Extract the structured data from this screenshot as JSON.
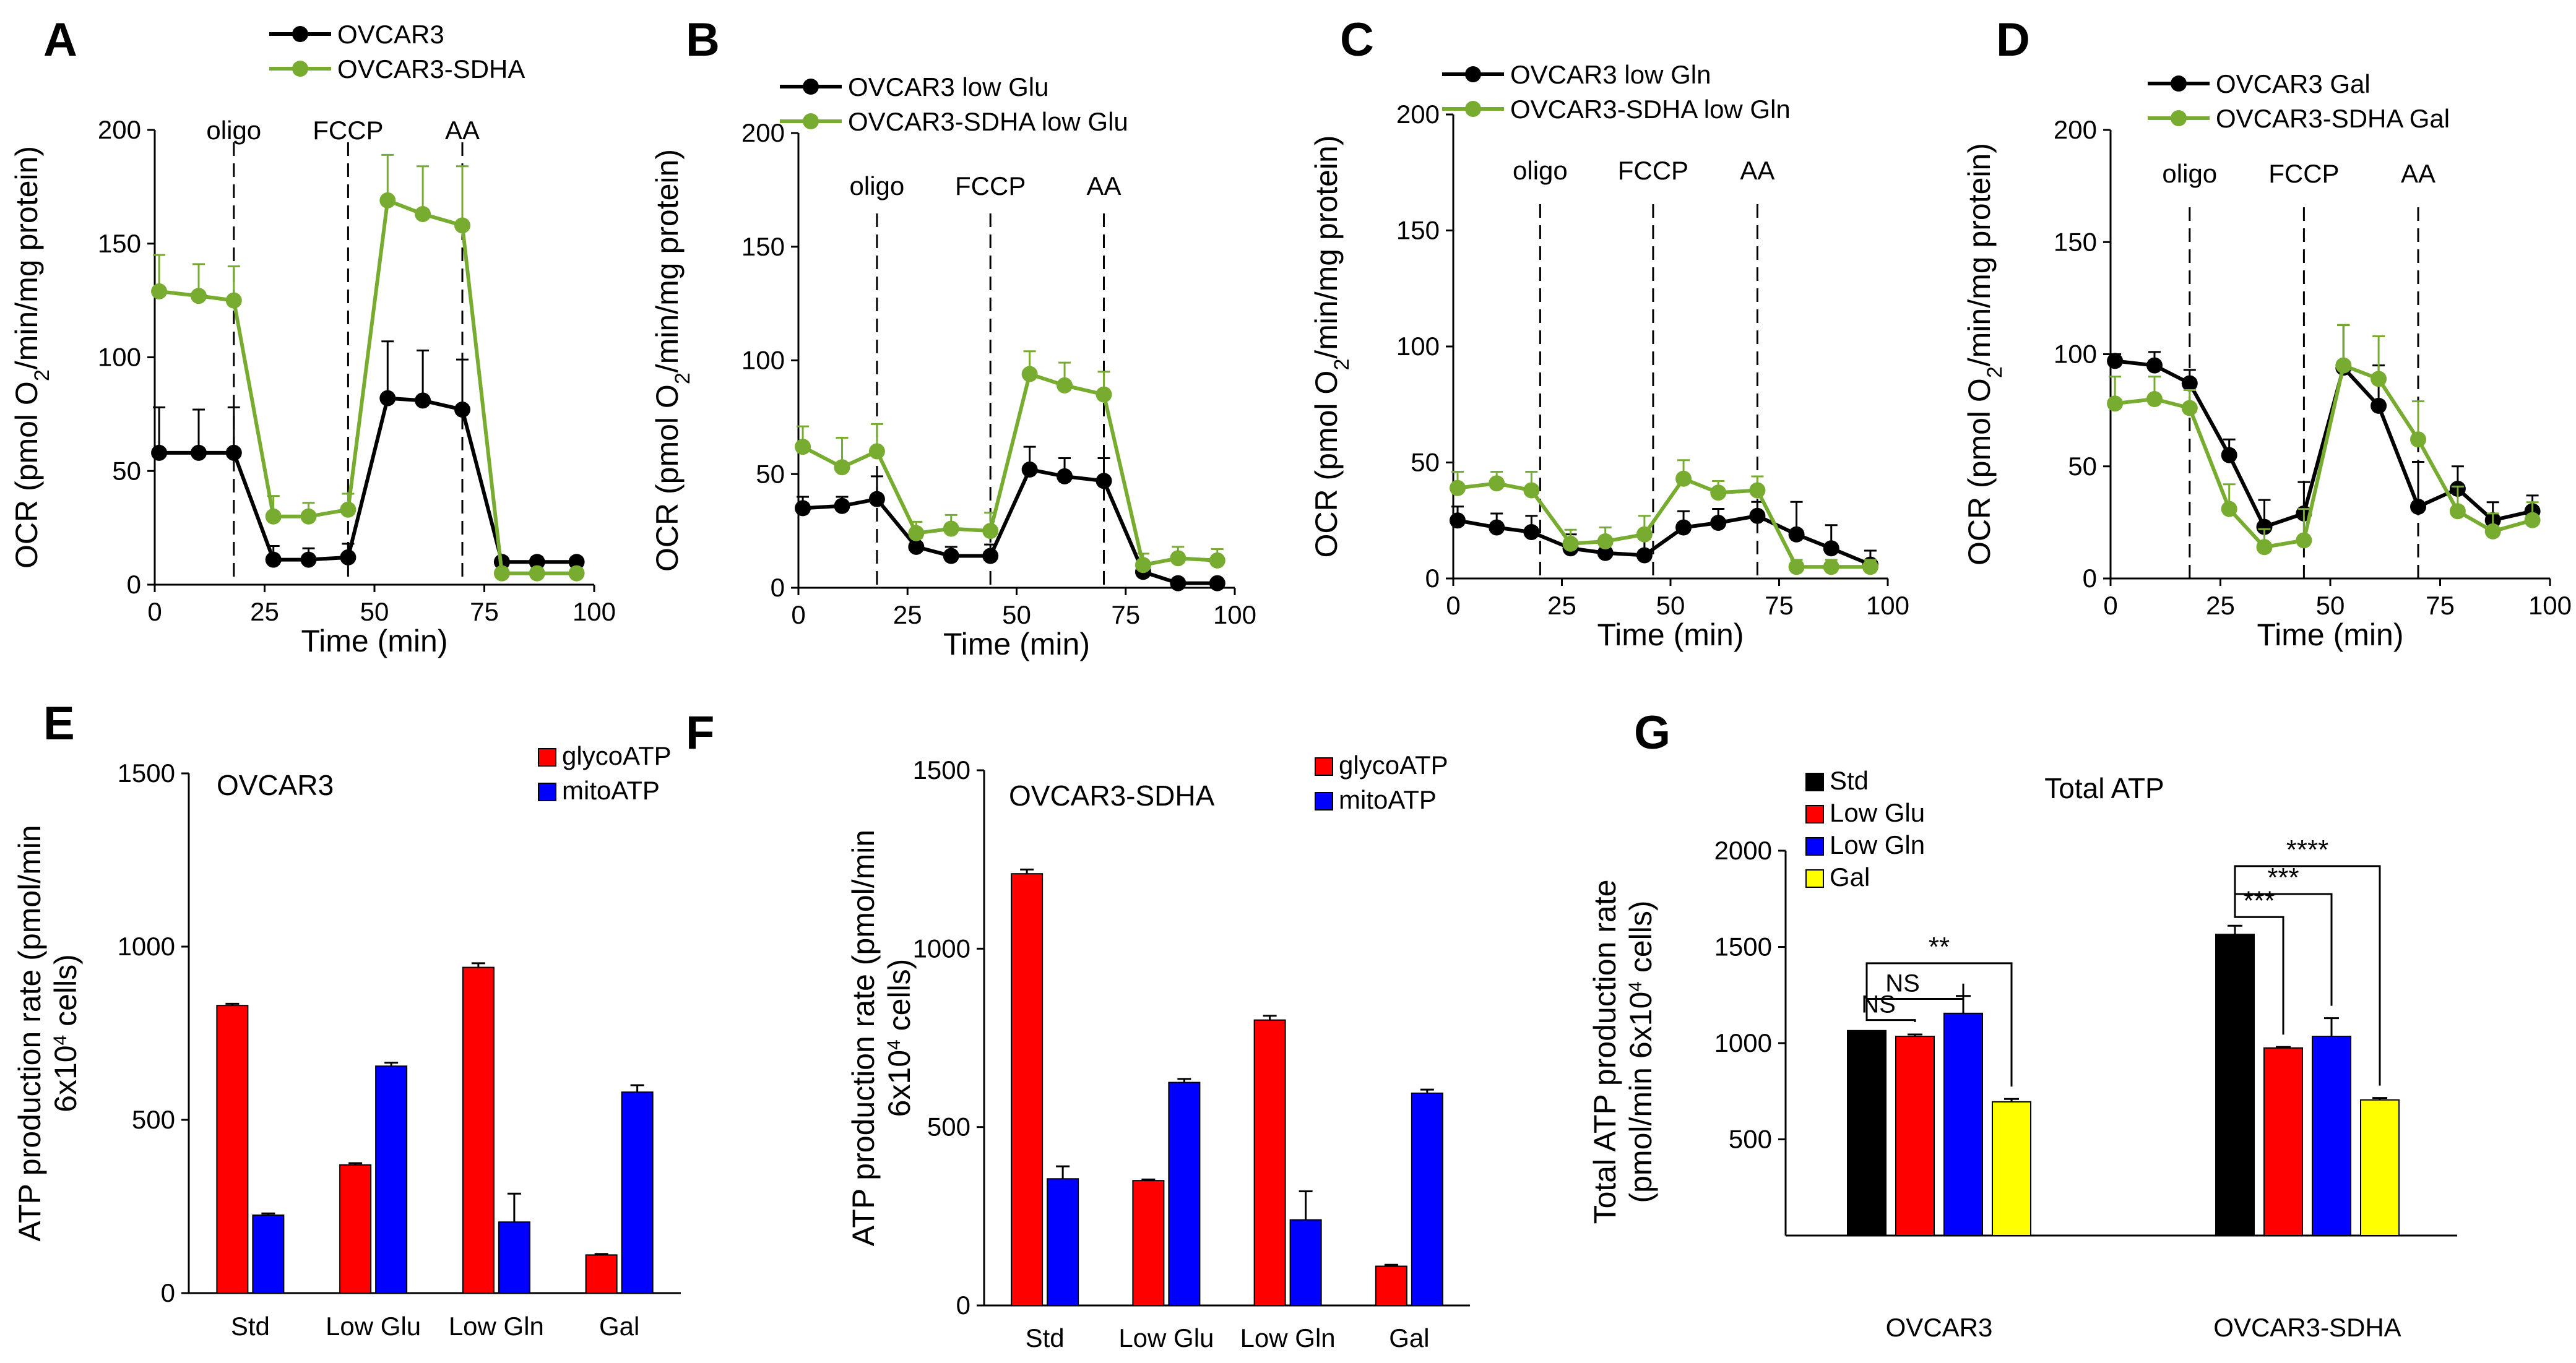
{
  "chart_data": [
    {
      "type": "line",
      "panel": "A",
      "xlabel": "Time (min)",
      "ylabel": "OCR (pmol O2/min/mg protein)",
      "ylabel_parts": [
        "OCR (pmol O",
        "2",
        "/min/mg protein)"
      ],
      "xlim": [
        0,
        100
      ],
      "ylim": [
        0,
        200
      ],
      "xticks": [
        0,
        25,
        50,
        75,
        100
      ],
      "yticks": [
        0,
        50,
        100,
        150,
        200
      ],
      "injections": [
        {
          "x": 18,
          "label": "oligo"
        },
        {
          "x": 44,
          "label": "FCCP"
        },
        {
          "x": 70,
          "label": "AA"
        }
      ],
      "x": [
        1,
        10,
        18,
        27,
        35,
        44,
        53,
        61,
        70,
        79,
        87,
        96
      ],
      "series": [
        {
          "name": "OVCAR3",
          "color": "#000000",
          "values": [
            58,
            58,
            58,
            11,
            11,
            12,
            82,
            81,
            77,
            10,
            10,
            10
          ],
          "errors": [
            20,
            19,
            20,
            6,
            5,
            6,
            25,
            22,
            22,
            2,
            2,
            2
          ]
        },
        {
          "name": "OVCAR3-SDHA",
          "color": "#77AC30",
          "values": [
            129,
            127,
            125,
            30,
            30,
            33,
            169,
            163,
            158,
            5,
            5,
            5
          ],
          "errors": [
            16,
            14,
            15,
            9,
            6,
            7,
            20,
            21,
            26,
            2,
            2,
            2
          ]
        }
      ]
    },
    {
      "type": "line",
      "panel": "B",
      "xlabel": "Time (min)",
      "ylabel": "OCR (pmol O2/min/mg protein)",
      "ylabel_parts": [
        "OCR (pmol O",
        "2",
        "/min/mg protein)"
      ],
      "xlim": [
        0,
        100
      ],
      "ylim": [
        0,
        200
      ],
      "xticks": [
        0,
        25,
        50,
        75,
        100
      ],
      "yticks": [
        0,
        50,
        100,
        150,
        200
      ],
      "injections": [
        {
          "x": 18,
          "label": "oligo"
        },
        {
          "x": 44,
          "label": "FCCP"
        },
        {
          "x": 70,
          "label": "AA"
        }
      ],
      "x": [
        1,
        10,
        18,
        27,
        35,
        44,
        53,
        61,
        70,
        79,
        87,
        96
      ],
      "series": [
        {
          "name": "OVCAR3  low Glu",
          "color": "#000000",
          "values": [
            35,
            36,
            39,
            18,
            14,
            14,
            52,
            49,
            47,
            7,
            2,
            2
          ],
          "errors": [
            5,
            4,
            10,
            4,
            4,
            5,
            10,
            8,
            10,
            4,
            2,
            1
          ]
        },
        {
          "name": "OVCAR3-SDHA low Glu",
          "color": "#77AC30",
          "values": [
            62,
            53,
            60,
            24,
            26,
            25,
            94,
            89,
            85,
            10,
            13,
            12
          ],
          "errors": [
            9,
            13,
            12,
            5,
            6,
            8,
            10,
            10,
            10,
            5,
            5,
            5
          ]
        }
      ]
    },
    {
      "type": "line",
      "panel": "C",
      "xlabel": "Time (min)",
      "ylabel": "OCR (pmol O2/min/mg protein)",
      "ylabel_parts": [
        "OCR (pmol O",
        "2",
        "/min/mg protein)"
      ],
      "xlim": [
        0,
        100
      ],
      "ylim": [
        0,
        200
      ],
      "xticks": [
        0,
        25,
        50,
        75,
        100
      ],
      "yticks": [
        0,
        50,
        100,
        150,
        200
      ],
      "injections": [
        {
          "x": 20,
          "label": "oligo"
        },
        {
          "x": 46,
          "label": "FCCP"
        },
        {
          "x": 70,
          "label": "AA"
        }
      ],
      "x": [
        1,
        10,
        18,
        27,
        35,
        44,
        53,
        61,
        70,
        79,
        87,
        96
      ],
      "series": [
        {
          "name": "OVCAR3  low Gln",
          "color": "#000000",
          "values": [
            25,
            22,
            20,
            13,
            11,
            10,
            22,
            24,
            27,
            19,
            13,
            6
          ],
          "errors": [
            6,
            6,
            7,
            6,
            5,
            7,
            7,
            6,
            6,
            14,
            10,
            6
          ]
        },
        {
          "name": "OVCAR3-SDHA low Gln",
          "color": "#77AC30",
          "values": [
            39,
            41,
            38,
            15,
            16,
            19,
            43,
            37,
            38,
            5,
            5,
            5
          ],
          "errors": [
            7,
            5,
            8,
            6,
            6,
            8,
            8,
            5,
            6,
            3,
            3,
            3
          ]
        }
      ]
    },
    {
      "type": "line",
      "panel": "D",
      "xlabel": "Time (min)",
      "ylabel": "OCR (pmol O2/min/mg protein)",
      "ylabel_parts": [
        "OCR (pmol O",
        "2",
        "/min/mg protein)"
      ],
      "xlim": [
        0,
        100
      ],
      "ylim": [
        0,
        200
      ],
      "xticks": [
        0,
        25,
        50,
        75,
        100
      ],
      "yticks": [
        0,
        50,
        100,
        150,
        200
      ],
      "injections": [
        {
          "x": 18,
          "label": "oligo"
        },
        {
          "x": 44,
          "label": "FCCP"
        },
        {
          "x": 70,
          "label": "AA"
        }
      ],
      "x": [
        1,
        10,
        18,
        27,
        35,
        44,
        53,
        61,
        70,
        79,
        87,
        96
      ],
      "series": [
        {
          "name": "OVCAR3  Gal",
          "color": "#000000",
          "values": [
            97,
            95,
            87,
            55,
            23,
            29,
            94,
            77,
            32,
            40,
            26,
            30
          ],
          "errors": [
            3,
            6,
            6,
            7,
            12,
            14,
            19,
            18,
            20,
            10,
            8,
            7
          ]
        },
        {
          "name": "OVCAR3-SDHA Gal",
          "color": "#77AC30",
          "values": [
            78,
            80,
            76,
            31,
            14,
            17,
            95,
            89,
            62,
            30,
            21,
            26
          ],
          "errors": [
            12,
            10,
            8,
            11,
            8,
            14,
            18,
            19,
            17,
            11,
            8,
            8
          ]
        }
      ]
    },
    {
      "type": "bar",
      "panel": "E",
      "title": "OVCAR3",
      "ylabel_line1": "ATP production rate (pmol/min",
      "ylabel_line2_parts": [
        "6x10",
        "4",
        " cells)"
      ],
      "ylim": [
        0,
        1500
      ],
      "yticks": [
        0,
        500,
        1000,
        1500
      ],
      "categories": [
        "Std",
        "Low Glu",
        "Low Gln",
        "Gal"
      ],
      "series": [
        {
          "name": "glycoATP",
          "color": "#FF0000",
          "values": [
            830,
            370,
            940,
            110
          ],
          "errors": [
            5,
            5,
            12,
            3
          ]
        },
        {
          "name": "mitoATP",
          "color": "#0000FF",
          "values": [
            225,
            655,
            205,
            580
          ],
          "errors": [
            5,
            10,
            82,
            20
          ]
        }
      ]
    },
    {
      "type": "bar",
      "panel": "F",
      "title": "OVCAR3-SDHA",
      "ylabel_line1": "ATP production rate (pmol/min",
      "ylabel_line2_parts": [
        "6x10",
        "4",
        " cells)"
      ],
      "ylim": [
        0,
        1500
      ],
      "yticks": [
        0,
        500,
        1000,
        1500
      ],
      "categories": [
        "Std",
        "Low Glu",
        "Low Gln",
        "Gal"
      ],
      "series": [
        {
          "name": "glycoATP",
          "color": "#FF0000",
          "values": [
            1210,
            350,
            800,
            110
          ],
          "errors": [
            12,
            3,
            12,
            4
          ]
        },
        {
          "name": "mitoATP",
          "color": "#0000FF",
          "values": [
            355,
            625,
            240,
            595
          ],
          "errors": [
            35,
            10,
            80,
            10
          ]
        }
      ]
    },
    {
      "type": "bar",
      "panel": "G",
      "title": "Total ATP",
      "ylabel_line1": "Total ATP production rate",
      "ylabel_line2_parts": [
        "(pmol/min 6x10",
        "4",
        " cells)"
      ],
      "ylim": [
        0,
        2000
      ],
      "ymin_display": 500,
      "yticks": [
        500,
        1000,
        1500,
        2000
      ],
      "categories": [
        "OVCAR3",
        "OVCAR3-SDHA"
      ],
      "series": [
        {
          "name": "Std",
          "color": "#000000",
          "values": [
            1065,
            1565
          ],
          "errors": [
            0,
            45
          ]
        },
        {
          "name": "Low Glu",
          "color": "#FF0000",
          "values": [
            1035,
            975
          ],
          "errors": [
            10,
            5
          ]
        },
        {
          "name": "Low Gln",
          "color": "#0000FF",
          "values": [
            1155,
            1035
          ],
          "errors": [
            90,
            95
          ]
        },
        {
          "name": "Gal",
          "color": "#FFFF00",
          "values": [
            695,
            705
          ],
          "errors": [
            15,
            10
          ]
        }
      ],
      "significance": [
        {
          "group": 0,
          "from": 0,
          "to": 1,
          "label": "NS",
          "y": 1120
        },
        {
          "group": 0,
          "from": 0,
          "to": 2,
          "label": "NS",
          "y": 1230
        },
        {
          "group": 0,
          "from": 0,
          "to": 3,
          "label": "**",
          "y": 1415
        },
        {
          "group": 1,
          "from": 0,
          "to": 1,
          "label": "***",
          "y": 1655
        },
        {
          "group": 1,
          "from": 0,
          "to": 2,
          "label": "***",
          "y": 1775
        },
        {
          "group": 1,
          "from": 0,
          "to": 3,
          "label": "****",
          "y": 1920
        }
      ]
    }
  ]
}
